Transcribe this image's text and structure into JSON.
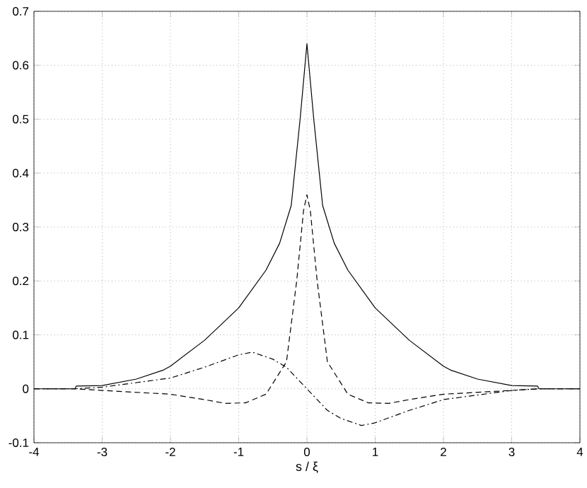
{
  "chart_data": {
    "type": "line",
    "xlabel": "s / ξ",
    "xlim": [
      -4,
      4
    ],
    "ylim": [
      -0.1,
      0.7
    ],
    "xticks": [
      -4,
      -3,
      -2,
      -1,
      0,
      1,
      2,
      3,
      4
    ],
    "yticks": [
      -0.1,
      0,
      0.1,
      0.2,
      0.3,
      0.4,
      0.5,
      0.6,
      0.7
    ],
    "grid": true,
    "marker": "none",
    "series": [
      {
        "color": "#000000",
        "line_style": "solid",
        "x": [
          -4,
          -3.4,
          -3.38,
          -3,
          -2.5,
          -2.1,
          -2,
          -1.5,
          -1,
          -0.6,
          -0.4,
          -0.23,
          -0.1,
          0,
          0.1,
          0.23,
          0.4,
          0.6,
          1,
          1.5,
          2,
          2.1,
          2.5,
          3,
          3.38,
          3.4,
          4
        ],
        "values": [
          0,
          0,
          0.005,
          0.006,
          0.018,
          0.035,
          0.042,
          0.09,
          0.15,
          0.22,
          0.27,
          0.34,
          0.5,
          0.64,
          0.5,
          0.34,
          0.27,
          0.22,
          0.15,
          0.09,
          0.042,
          0.035,
          0.018,
          0.006,
          0.005,
          0,
          0
        ]
      },
      {
        "color": "#000000",
        "line_style": "dashed",
        "x": [
          -4,
          -3.4,
          -3,
          -2,
          -1.5,
          -1.2,
          -0.9,
          -0.6,
          -0.3,
          -0.15,
          -0.05,
          0,
          0.05,
          0.15,
          0.3,
          0.6,
          0.9,
          1.2,
          1.5,
          2,
          3,
          3.4,
          4
        ],
        "values": [
          0,
          0,
          -0.003,
          -0.01,
          -0.02,
          -0.027,
          -0.026,
          -0.01,
          0.05,
          0.2,
          0.33,
          0.36,
          0.33,
          0.2,
          0.05,
          -0.01,
          -0.026,
          -0.027,
          -0.02,
          -0.01,
          -0.003,
          0,
          0
        ]
      },
      {
        "color": "#000000",
        "line_style": "dashdot",
        "x": [
          -4,
          -3.4,
          -3,
          -2,
          -1.5,
          -1,
          -0.8,
          -0.5,
          -0.3,
          0,
          0.3,
          0.5,
          0.8,
          1,
          1.5,
          2,
          3,
          3.4,
          4
        ],
        "values": [
          0,
          0,
          0.003,
          0.02,
          0.04,
          0.063,
          0.068,
          0.055,
          0.04,
          0,
          -0.04,
          -0.055,
          -0.068,
          -0.063,
          -0.04,
          -0.02,
          -0.003,
          0,
          0
        ]
      }
    ]
  }
}
